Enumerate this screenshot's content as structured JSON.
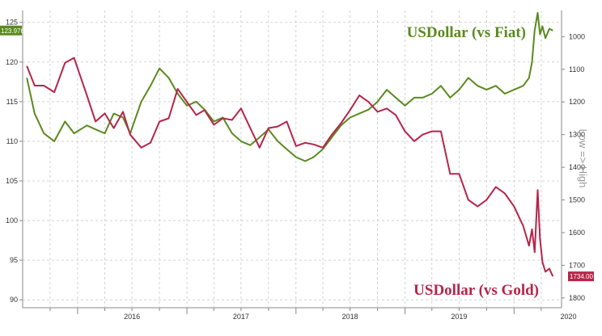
{
  "chart_data": {
    "type": "line",
    "x_ticks": [
      "2016",
      "2017",
      "2018",
      "2019",
      "2020"
    ],
    "left_axis": {
      "ticks": [
        90,
        95,
        100,
        105,
        110,
        115,
        120,
        125
      ],
      "range": [
        89,
        126.5
      ]
    },
    "right_axis": {
      "title": "Low => High",
      "ticks": [
        1000,
        1100,
        1200,
        1300,
        1400,
        1500,
        1600,
        1700,
        1800
      ],
      "range": [
        1830,
        920
      ],
      "inverted": true
    },
    "grid": true,
    "series": [
      {
        "name": "USDollar (vs Fiat)",
        "axis": "left",
        "color": "#5a8a1e",
        "last_value_label": "123.9765",
        "points": [
          [
            "2015-07-15",
            118.0
          ],
          [
            "2015-08-10",
            113.5
          ],
          [
            "2015-09-10",
            111.0
          ],
          [
            "2015-10-15",
            110.0
          ],
          [
            "2015-11-20",
            112.5
          ],
          [
            "2015-12-20",
            111.0
          ],
          [
            "2016-02-01",
            112.0
          ],
          [
            "2016-03-01",
            111.5
          ],
          [
            "2016-04-01",
            111.0
          ],
          [
            "2016-05-01",
            113.5
          ],
          [
            "2016-06-01",
            113.0
          ],
          [
            "2016-06-25",
            111.0
          ],
          [
            "2016-08-01",
            115.0
          ],
          [
            "2016-09-01",
            117.0
          ],
          [
            "2016-10-01",
            119.2
          ],
          [
            "2016-11-01",
            118.0
          ],
          [
            "2016-12-01",
            116.0
          ],
          [
            "2017-01-01",
            114.5
          ],
          [
            "2017-02-01",
            115.0
          ],
          [
            "2017-03-01",
            114.0
          ],
          [
            "2017-04-01",
            112.5
          ],
          [
            "2017-05-01",
            113.0
          ],
          [
            "2017-06-01",
            111.0
          ],
          [
            "2017-07-01",
            110.0
          ],
          [
            "2017-08-01",
            109.5
          ],
          [
            "2017-09-01",
            110.5
          ],
          [
            "2017-10-01",
            111.5
          ],
          [
            "2017-11-01",
            110.0
          ],
          [
            "2017-12-01",
            109.0
          ],
          [
            "2018-01-01",
            108.0
          ],
          [
            "2018-02-01",
            107.5
          ],
          [
            "2018-03-01",
            108.0
          ],
          [
            "2018-04-01",
            109.0
          ],
          [
            "2018-05-01",
            110.5
          ],
          [
            "2018-06-01",
            112.0
          ],
          [
            "2018-07-01",
            113.0
          ],
          [
            "2018-08-01",
            113.5
          ],
          [
            "2018-09-01",
            114.0
          ],
          [
            "2018-10-01",
            115.0
          ],
          [
            "2018-11-01",
            116.5
          ],
          [
            "2018-12-01",
            115.5
          ],
          [
            "2019-01-01",
            114.5
          ],
          [
            "2019-02-01",
            115.5
          ],
          [
            "2019-03-01",
            115.5
          ],
          [
            "2019-04-01",
            116.0
          ],
          [
            "2019-05-01",
            117.0
          ],
          [
            "2019-06-01",
            115.5
          ],
          [
            "2019-07-01",
            116.5
          ],
          [
            "2019-08-01",
            118.0
          ],
          [
            "2019-09-01",
            117.0
          ],
          [
            "2019-10-01",
            116.5
          ],
          [
            "2019-11-01",
            117.0
          ],
          [
            "2019-12-01",
            116.0
          ],
          [
            "2020-01-01",
            116.5
          ],
          [
            "2020-02-01",
            117.0
          ],
          [
            "2020-02-20",
            118.0
          ],
          [
            "2020-03-01",
            120.0
          ],
          [
            "2020-03-10",
            124.0
          ],
          [
            "2020-03-20",
            126.2
          ],
          [
            "2020-03-28",
            123.5
          ],
          [
            "2020-04-05",
            124.5
          ],
          [
            "2020-04-15",
            123.0
          ],
          [
            "2020-04-28",
            124.2
          ],
          [
            "2020-05-10",
            123.9765
          ]
        ]
      },
      {
        "name": "USDollar (vs Gold)",
        "axis": "right",
        "color": "#b5254a",
        "last_value_label": "1734.00",
        "points": [
          [
            "2015-07-15",
            1090
          ],
          [
            "2015-08-10",
            1150
          ],
          [
            "2015-09-10",
            1150
          ],
          [
            "2015-10-15",
            1170
          ],
          [
            "2015-11-20",
            1080
          ],
          [
            "2015-12-20",
            1065
          ],
          [
            "2016-02-01",
            1180
          ],
          [
            "2016-03-01",
            1260
          ],
          [
            "2016-04-01",
            1235
          ],
          [
            "2016-05-01",
            1280
          ],
          [
            "2016-06-01",
            1230
          ],
          [
            "2016-06-25",
            1300
          ],
          [
            "2016-08-01",
            1340
          ],
          [
            "2016-09-01",
            1325
          ],
          [
            "2016-10-01",
            1260
          ],
          [
            "2016-11-01",
            1250
          ],
          [
            "2016-12-01",
            1160
          ],
          [
            "2017-01-01",
            1200
          ],
          [
            "2017-02-01",
            1240
          ],
          [
            "2017-03-01",
            1225
          ],
          [
            "2017-04-01",
            1270
          ],
          [
            "2017-05-01",
            1250
          ],
          [
            "2017-06-01",
            1255
          ],
          [
            "2017-07-01",
            1220
          ],
          [
            "2017-08-01",
            1280
          ],
          [
            "2017-09-01",
            1340
          ],
          [
            "2017-10-01",
            1280
          ],
          [
            "2017-11-01",
            1275
          ],
          [
            "2017-12-01",
            1260
          ],
          [
            "2018-01-01",
            1335
          ],
          [
            "2018-02-01",
            1325
          ],
          [
            "2018-03-01",
            1330
          ],
          [
            "2018-04-01",
            1340
          ],
          [
            "2018-05-01",
            1300
          ],
          [
            "2018-06-01",
            1265
          ],
          [
            "2018-07-01",
            1225
          ],
          [
            "2018-08-01",
            1180
          ],
          [
            "2018-09-01",
            1200
          ],
          [
            "2018-10-01",
            1230
          ],
          [
            "2018-11-01",
            1220
          ],
          [
            "2018-12-01",
            1240
          ],
          [
            "2019-01-01",
            1290
          ],
          [
            "2019-02-01",
            1320
          ],
          [
            "2019-03-01",
            1300
          ],
          [
            "2019-04-01",
            1290
          ],
          [
            "2019-05-01",
            1290
          ],
          [
            "2019-06-01",
            1420
          ],
          [
            "2019-07-01",
            1420
          ],
          [
            "2019-08-01",
            1500
          ],
          [
            "2019-09-01",
            1520
          ],
          [
            "2019-10-01",
            1500
          ],
          [
            "2019-11-01",
            1460
          ],
          [
            "2019-12-01",
            1480
          ],
          [
            "2020-01-01",
            1520
          ],
          [
            "2020-02-01",
            1580
          ],
          [
            "2020-02-20",
            1640
          ],
          [
            "2020-03-01",
            1590
          ],
          [
            "2020-03-10",
            1660
          ],
          [
            "2020-03-20",
            1470
          ],
          [
            "2020-03-28",
            1620
          ],
          [
            "2020-04-05",
            1690
          ],
          [
            "2020-04-15",
            1720
          ],
          [
            "2020-04-28",
            1710
          ],
          [
            "2020-05-10",
            1734
          ]
        ]
      }
    ]
  }
}
